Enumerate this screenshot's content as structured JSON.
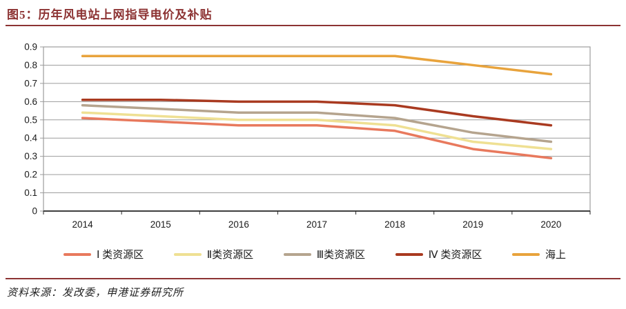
{
  "header": {
    "title": "图5：历年风电站上网指导电价及补贴"
  },
  "footer": {
    "source": "资料来源：发改委，申港证券研究所"
  },
  "colors": {
    "accent": "#8C3232",
    "grid": "#9C9C9C",
    "axis": "#262626",
    "tick_label": "#1A1A1A"
  },
  "chart_data": {
    "type": "line",
    "title": "历年风电站上网指导电价及补贴",
    "categories": [
      "2014",
      "2015",
      "2016",
      "2017",
      "2018",
      "2019",
      "2020"
    ],
    "series": [
      {
        "name": "Ⅰ 类资源区",
        "color": "#E8795D",
        "values": [
          0.51,
          0.49,
          0.47,
          0.47,
          0.44,
          0.34,
          0.29
        ]
      },
      {
        "name": "Ⅱ类资源区",
        "color": "#EFE093",
        "values": [
          0.54,
          0.52,
          0.5,
          0.5,
          0.47,
          0.38,
          0.34
        ]
      },
      {
        "name": "Ⅲ类资源区",
        "color": "#B5A48E",
        "values": [
          0.58,
          0.56,
          0.54,
          0.54,
          0.51,
          0.43,
          0.38
        ]
      },
      {
        "name": "Ⅳ 类资源区",
        "color": "#A93A20",
        "values": [
          0.61,
          0.61,
          0.6,
          0.6,
          0.58,
          0.52,
          0.47
        ]
      },
      {
        "name": "海上",
        "color": "#E8A33C",
        "values": [
          0.85,
          0.85,
          0.85,
          0.85,
          0.85,
          0.8,
          0.75
        ]
      }
    ],
    "ylim": [
      0,
      0.9
    ],
    "y_tick_labels": [
      "0.9",
      "0.8",
      "0.7",
      "0.6",
      "0.5",
      "0.4",
      "0.3",
      "0.2",
      "0.1",
      "0"
    ],
    "xlabel": "",
    "ylabel": "",
    "grid": true,
    "legend_position": "bottom"
  }
}
